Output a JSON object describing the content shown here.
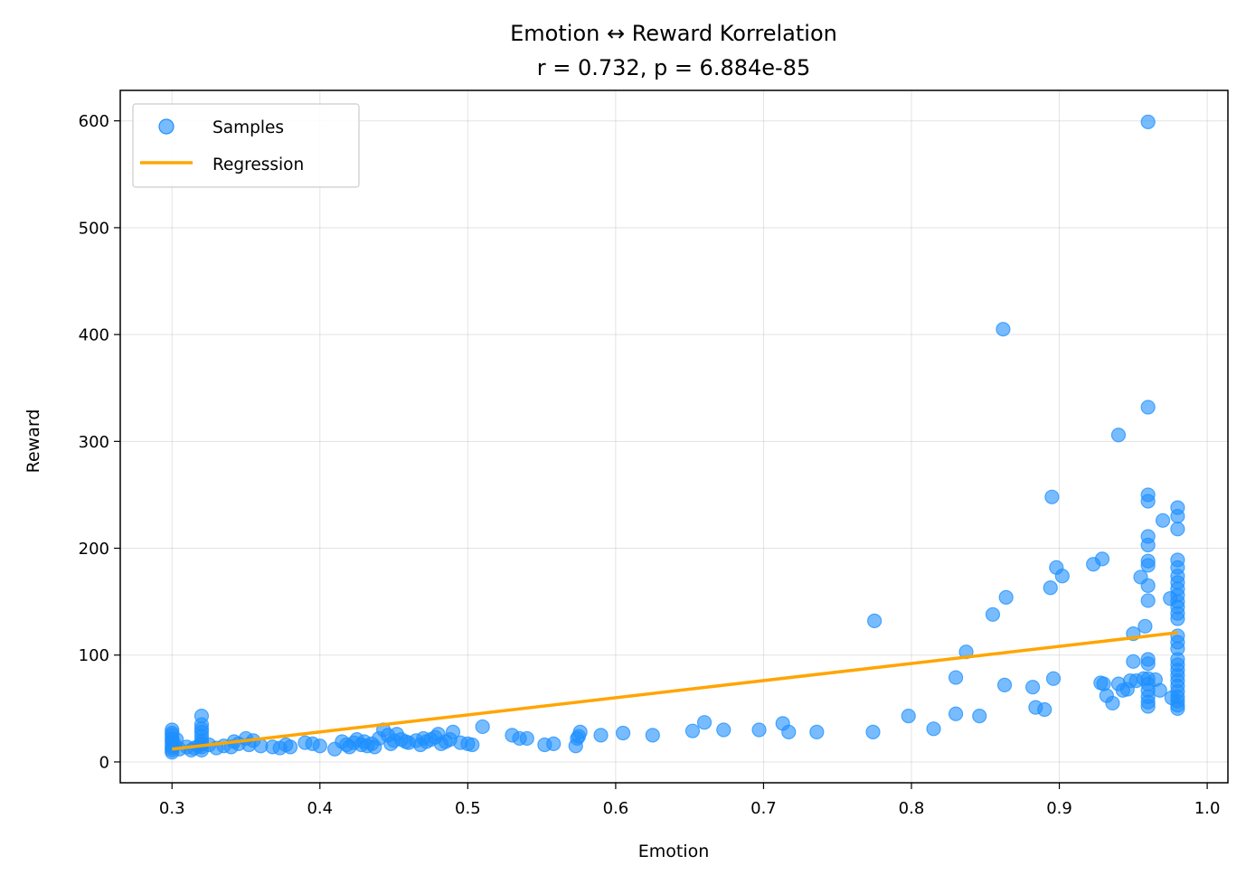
{
  "chart_data": {
    "type": "scatter",
    "title": "Emotion ↔ Reward Korrelation",
    "subtitle": "r = 0.732, p = 6.884e-85",
    "xlabel": "Emotion",
    "ylabel": "Reward",
    "xlim": [
      0.265,
      1.014
    ],
    "ylim": [
      -19.5,
      628.5
    ],
    "xticks": [
      0.3,
      0.4,
      0.5,
      0.6,
      0.7,
      0.8,
      0.9,
      1.0
    ],
    "xtick_labels": [
      "0.3",
      "0.4",
      "0.5",
      "0.6",
      "0.7",
      "0.8",
      "0.9",
      "1.0"
    ],
    "yticks": [
      0,
      100,
      200,
      300,
      400,
      500,
      600
    ],
    "ytick_labels": [
      "0",
      "100",
      "200",
      "300",
      "400",
      "500",
      "600"
    ],
    "grid": true,
    "legend_position": "top-left",
    "colors": {
      "samples": "#1e90ff",
      "regression": "#ffa500"
    },
    "series": [
      {
        "name": "Samples",
        "kind": "scatter",
        "points": [
          [
            0.3,
            30
          ],
          [
            0.3,
            25
          ],
          [
            0.3,
            22
          ],
          [
            0.3,
            18
          ],
          [
            0.3,
            15
          ],
          [
            0.3,
            13
          ],
          [
            0.3,
            11
          ],
          [
            0.3,
            9
          ],
          [
            0.3,
            20
          ],
          [
            0.3,
            27
          ],
          [
            0.302,
            16
          ],
          [
            0.303,
            21
          ],
          [
            0.305,
            12
          ],
          [
            0.31,
            14
          ],
          [
            0.313,
            11
          ],
          [
            0.315,
            13
          ],
          [
            0.318,
            15
          ],
          [
            0.32,
            43
          ],
          [
            0.32,
            35
          ],
          [
            0.32,
            31
          ],
          [
            0.32,
            28
          ],
          [
            0.32,
            24
          ],
          [
            0.32,
            20
          ],
          [
            0.32,
            17
          ],
          [
            0.32,
            14
          ],
          [
            0.32,
            11
          ],
          [
            0.325,
            16
          ],
          [
            0.33,
            13
          ],
          [
            0.335,
            15
          ],
          [
            0.34,
            14
          ],
          [
            0.342,
            19
          ],
          [
            0.345,
            17
          ],
          [
            0.35,
            22
          ],
          [
            0.352,
            16
          ],
          [
            0.355,
            20
          ],
          [
            0.36,
            15
          ],
          [
            0.368,
            14
          ],
          [
            0.373,
            13
          ],
          [
            0.377,
            16
          ],
          [
            0.38,
            14
          ],
          [
            0.39,
            18
          ],
          [
            0.395,
            17
          ],
          [
            0.4,
            15
          ],
          [
            0.41,
            12
          ],
          [
            0.415,
            19
          ],
          [
            0.418,
            16
          ],
          [
            0.42,
            14
          ],
          [
            0.423,
            18
          ],
          [
            0.425,
            21
          ],
          [
            0.428,
            16
          ],
          [
            0.43,
            19
          ],
          [
            0.432,
            15
          ],
          [
            0.435,
            17
          ],
          [
            0.437,
            14
          ],
          [
            0.44,
            22
          ],
          [
            0.443,
            30
          ],
          [
            0.446,
            25
          ],
          [
            0.448,
            17
          ],
          [
            0.45,
            20
          ],
          [
            0.452,
            26
          ],
          [
            0.455,
            21
          ],
          [
            0.458,
            19
          ],
          [
            0.46,
            18
          ],
          [
            0.465,
            20
          ],
          [
            0.468,
            16
          ],
          [
            0.47,
            22
          ],
          [
            0.472,
            19
          ],
          [
            0.475,
            21
          ],
          [
            0.478,
            23
          ],
          [
            0.48,
            26
          ],
          [
            0.482,
            17
          ],
          [
            0.485,
            19
          ],
          [
            0.488,
            21
          ],
          [
            0.49,
            28
          ],
          [
            0.495,
            18
          ],
          [
            0.5,
            17
          ],
          [
            0.503,
            16
          ],
          [
            0.51,
            33
          ],
          [
            0.53,
            25
          ],
          [
            0.535,
            22
          ],
          [
            0.54,
            22
          ],
          [
            0.552,
            16
          ],
          [
            0.558,
            17
          ],
          [
            0.573,
            15
          ],
          [
            0.574,
            22
          ],
          [
            0.575,
            24
          ],
          [
            0.576,
            28
          ],
          [
            0.59,
            25
          ],
          [
            0.605,
            27
          ],
          [
            0.625,
            25
          ],
          [
            0.652,
            29
          ],
          [
            0.66,
            37
          ],
          [
            0.673,
            30
          ],
          [
            0.697,
            30
          ],
          [
            0.713,
            36
          ],
          [
            0.717,
            28
          ],
          [
            0.736,
            28
          ],
          [
            0.774,
            28
          ],
          [
            0.775,
            132
          ],
          [
            0.798,
            43
          ],
          [
            0.815,
            31
          ],
          [
            0.83,
            79
          ],
          [
            0.83,
            45
          ],
          [
            0.837,
            103
          ],
          [
            0.846,
            43
          ],
          [
            0.855,
            138
          ],
          [
            0.862,
            405
          ],
          [
            0.863,
            72
          ],
          [
            0.864,
            154
          ],
          [
            0.882,
            70
          ],
          [
            0.884,
            51
          ],
          [
            0.89,
            49
          ],
          [
            0.894,
            163
          ],
          [
            0.895,
            248
          ],
          [
            0.896,
            78
          ],
          [
            0.898,
            182
          ],
          [
            0.902,
            174
          ],
          [
            0.923,
            185
          ],
          [
            0.928,
            74
          ],
          [
            0.929,
            190
          ],
          [
            0.93,
            73
          ],
          [
            0.932,
            62
          ],
          [
            0.936,
            55
          ],
          [
            0.94,
            306
          ],
          [
            0.94,
            73
          ],
          [
            0.943,
            67
          ],
          [
            0.946,
            68
          ],
          [
            0.948,
            76
          ],
          [
            0.95,
            94
          ],
          [
            0.95,
            120
          ],
          [
            0.952,
            76
          ],
          [
            0.955,
            173
          ],
          [
            0.957,
            78
          ],
          [
            0.958,
            127
          ],
          [
            0.96,
            599
          ],
          [
            0.96,
            332
          ],
          [
            0.96,
            250
          ],
          [
            0.96,
            244
          ],
          [
            0.96,
            211
          ],
          [
            0.96,
            203
          ],
          [
            0.96,
            188
          ],
          [
            0.96,
            184
          ],
          [
            0.96,
            165
          ],
          [
            0.96,
            151
          ],
          [
            0.96,
            96
          ],
          [
            0.96,
            92
          ],
          [
            0.96,
            78
          ],
          [
            0.96,
            73
          ],
          [
            0.96,
            67
          ],
          [
            0.96,
            61
          ],
          [
            0.96,
            56
          ],
          [
            0.96,
            52
          ],
          [
            0.965,
            77
          ],
          [
            0.968,
            67
          ],
          [
            0.97,
            226
          ],
          [
            0.975,
            153
          ],
          [
            0.976,
            60
          ],
          [
            0.98,
            238
          ],
          [
            0.98,
            230
          ],
          [
            0.98,
            218
          ],
          [
            0.98,
            189
          ],
          [
            0.98,
            182
          ],
          [
            0.98,
            174
          ],
          [
            0.98,
            168
          ],
          [
            0.98,
            162
          ],
          [
            0.98,
            156
          ],
          [
            0.98,
            150
          ],
          [
            0.98,
            145
          ],
          [
            0.98,
            139
          ],
          [
            0.98,
            134
          ],
          [
            0.98,
            118
          ],
          [
            0.98,
            112
          ],
          [
            0.98,
            106
          ],
          [
            0.98,
            96
          ],
          [
            0.98,
            91
          ],
          [
            0.98,
            86
          ],
          [
            0.98,
            81
          ],
          [
            0.98,
            76
          ],
          [
            0.98,
            71
          ],
          [
            0.98,
            66
          ],
          [
            0.98,
            61
          ],
          [
            0.98,
            57
          ],
          [
            0.98,
            53
          ],
          [
            0.98,
            50
          ]
        ]
      },
      {
        "name": "Regression",
        "kind": "line",
        "points": [
          [
            0.3,
            12
          ],
          [
            0.98,
            121
          ]
        ]
      }
    ]
  }
}
